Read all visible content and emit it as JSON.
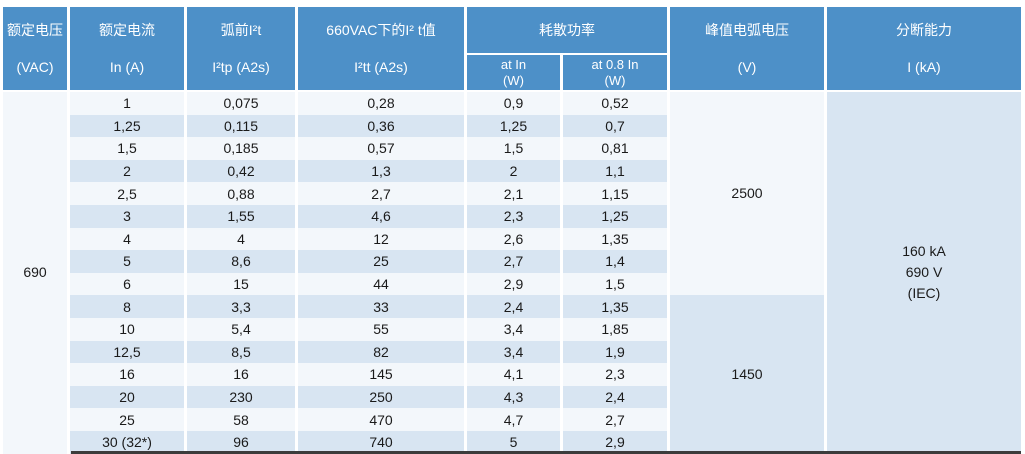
{
  "colors": {
    "header_bg": "#4D90C8",
    "header_text": "#FFFFFF",
    "row_light": "#F3F7FB",
    "row_blue": "#D8E5F2",
    "data_text": "#1A1A1A",
    "bottom_border": "#3C3C3C"
  },
  "header": {
    "rated_voltage": {
      "line1": "额定电压",
      "line2": "(VAC)"
    },
    "rated_current": {
      "line1": "额定电流",
      "line2": "In (A)"
    },
    "prearc_i2t": {
      "line1": "弧前I²t",
      "line2": "I²tp (A2s)"
    },
    "i2t_660vac": {
      "line1": "660VAC下的I² t值",
      "line2": "I²tt (A2s)"
    },
    "power_dissipation": {
      "title": "耗散功率",
      "sub_at_in": {
        "line1": "at In",
        "line2": "(W)"
      },
      "sub_at_08in": {
        "line1": "at 0.8 In",
        "line2": "(W)"
      }
    },
    "peak_arc_voltage": {
      "line1": "峰值电弧电压",
      "line2": "(V)"
    },
    "breaking_capacity": {
      "line1": "分断能力",
      "line2": "I (kA)"
    }
  },
  "merged_cells": {
    "rated_voltage_value": "690",
    "peak_arc_voltage_group1": "2500",
    "peak_arc_voltage_group2": "1450",
    "breaking_capacity_line1": "160 kA",
    "breaking_capacity_line2": "690 V",
    "breaking_capacity_line3": "(IEC)"
  },
  "rows": [
    {
      "in": "1",
      "i2tp": "0,075",
      "i2tt": "0,28",
      "p_at_in": "0,9",
      "p_at_08in": "0,52"
    },
    {
      "in": "1,25",
      "i2tp": "0,115",
      "i2tt": "0,36",
      "p_at_in": "1,25",
      "p_at_08in": "0,7"
    },
    {
      "in": "1,5",
      "i2tp": "0,185",
      "i2tt": "0,57",
      "p_at_in": "1,5",
      "p_at_08in": "0,81"
    },
    {
      "in": "2",
      "i2tp": "0,42",
      "i2tt": "1,3",
      "p_at_in": "2",
      "p_at_08in": "1,1"
    },
    {
      "in": "2,5",
      "i2tp": "0,88",
      "i2tt": "2,7",
      "p_at_in": "2,1",
      "p_at_08in": "1,15"
    },
    {
      "in": "3",
      "i2tp": "1,55",
      "i2tt": "4,6",
      "p_at_in": "2,3",
      "p_at_08in": "1,25"
    },
    {
      "in": "4",
      "i2tp": "4",
      "i2tt": "12",
      "p_at_in": "2,6",
      "p_at_08in": "1,35"
    },
    {
      "in": "5",
      "i2tp": "8,6",
      "i2tt": "25",
      "p_at_in": "2,7",
      "p_at_08in": "1,4"
    },
    {
      "in": "6",
      "i2tp": "15",
      "i2tt": "44",
      "p_at_in": "2,9",
      "p_at_08in": "1,5"
    },
    {
      "in": "8",
      "i2tp": "3,3",
      "i2tt": "33",
      "p_at_in": "2,4",
      "p_at_08in": "1,35"
    },
    {
      "in": "10",
      "i2tp": "5,4",
      "i2tt": "55",
      "p_at_in": "3,4",
      "p_at_08in": "1,85"
    },
    {
      "in": "12,5",
      "i2tp": "8,5",
      "i2tt": "82",
      "p_at_in": "3,4",
      "p_at_08in": "1,9"
    },
    {
      "in": "16",
      "i2tp": "16",
      "i2tt": "145",
      "p_at_in": "4,1",
      "p_at_08in": "2,3"
    },
    {
      "in": "20",
      "i2tp": "230",
      "i2tt": "250",
      "p_at_in": "4,3",
      "p_at_08in": "2,4"
    },
    {
      "in": "25",
      "i2tp": "58",
      "i2tt": "470",
      "p_at_in": "4,7",
      "p_at_08in": "2,7"
    },
    {
      "in": "30 (32*)",
      "i2tp": "96",
      "i2tt": "740",
      "p_at_in": "5",
      "p_at_08in": "2,9"
    }
  ]
}
